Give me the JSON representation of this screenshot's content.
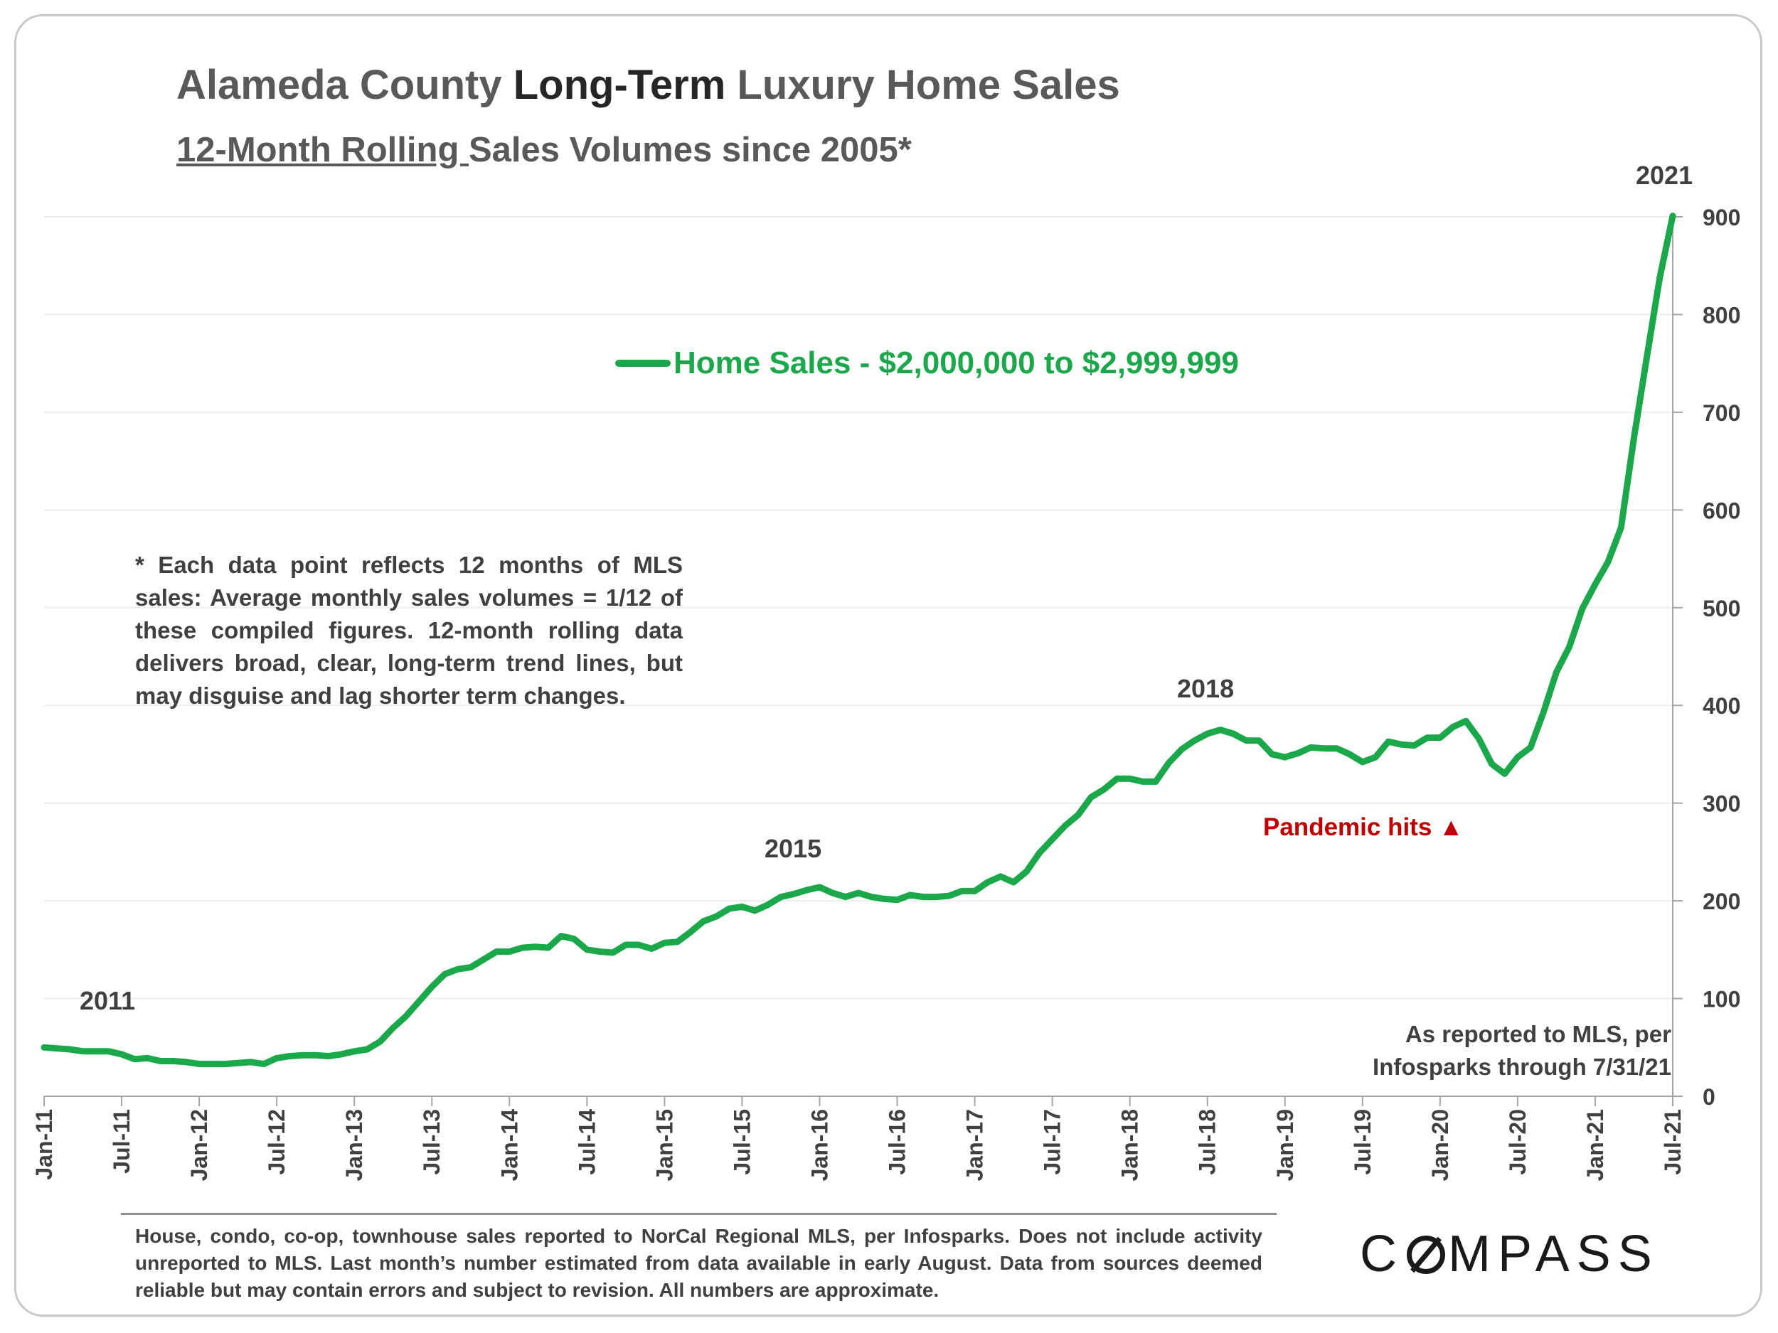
{
  "title": {
    "part1": "Alameda County ",
    "part2": "Long-Term",
    "part3": " Luxury Home Sales"
  },
  "subtitle": {
    "part1": "12-Month Rolling ",
    "part2": "Sales Volumes since 2005*"
  },
  "legend": {
    "label": "Home Sales - $2,000,000 to $2,999,999",
    "color": "#1aa84a"
  },
  "note": "* Each data point reflects 12 months of MLS sales:  Average monthly sales volumes = 1/12 of these compiled figures. 12-month rolling data delivers broad, clear, long-term trend lines, but may disguise and lag shorter term changes.",
  "source_note": "As reported to MLS, per Infosparks through 7/31/21",
  "annotation": {
    "text": "Pandemic hits",
    "symbol": "▲",
    "color": "#c00000"
  },
  "year_labels": {
    "y2011": "2011",
    "y2015": "2015",
    "y2018": "2018",
    "y2021": "2021"
  },
  "footer": "House, condo, co-op, townhouse sales reported to NorCal Regional MLS, per Infosparks. Does not include activity unreported to MLS. Last month’s number estimated from data available in early August. Data from sources deemed reliable but may contain errors and subject to revision.  All numbers are approximate.",
  "logo": {
    "pre": "C",
    "post": "MPASS"
  },
  "chart_data": {
    "type": "line",
    "title": "Alameda County Long-Term Luxury Home Sales",
    "subtitle": "12-Month Rolling Sales Volumes since 2005*",
    "x_ticks": [
      "Jan-11",
      "Jul-11",
      "Jan-12",
      "Jul-12",
      "Jan-13",
      "Jul-13",
      "Jan-14",
      "Jul-14",
      "Jan-15",
      "Jul-15",
      "Jan-16",
      "Jul-16",
      "Jan-17",
      "Jul-17",
      "Jan-18",
      "Jul-18",
      "Jan-19",
      "Jul-19",
      "Jan-20",
      "Jul-20",
      "Jan-21",
      "Jul-21"
    ],
    "y_ticks": [
      0,
      100,
      200,
      300,
      400,
      500,
      600,
      700,
      800,
      900
    ],
    "ylim": [
      0,
      900
    ],
    "y_axis_position": "right",
    "grid": true,
    "legend_position": "top-center",
    "series": [
      {
        "name": "Home Sales - $2,000,000 to $2,999,999",
        "color": "#1aa84a",
        "start": "Jan-11",
        "frequency": "monthly",
        "values": [
          50,
          49,
          48,
          46,
          46,
          46,
          43,
          38,
          39,
          36,
          36,
          35,
          33,
          33,
          33,
          34,
          35,
          33,
          39,
          41,
          42,
          42,
          41,
          43,
          46,
          48,
          56,
          70,
          82,
          97,
          112,
          125,
          130,
          132,
          140,
          148,
          148,
          152,
          153,
          152,
          164,
          161,
          150,
          148,
          147,
          155,
          155,
          151,
          157,
          158,
          168,
          179,
          184,
          192,
          194,
          190,
          196,
          204,
          207,
          211,
          214,
          208,
          204,
          208,
          204,
          202,
          201,
          206,
          204,
          204,
          205,
          210,
          210,
          219,
          225,
          219,
          230,
          249,
          263,
          277,
          288,
          306,
          314,
          325,
          325,
          322,
          322,
          341,
          355,
          364,
          371,
          375,
          371,
          364,
          364,
          350,
          347,
          351,
          357,
          356,
          356,
          350,
          342,
          347,
          363,
          360,
          359,
          367,
          367,
          378,
          384,
          366,
          340,
          330,
          347,
          357,
          393,
          434,
          460,
          499,
          524,
          547,
          582,
          674,
          757,
          838,
          901
        ]
      }
    ],
    "annotations": [
      {
        "label": "2011",
        "x": "Jan-11"
      },
      {
        "label": "2015",
        "x": "Jul-15"
      },
      {
        "label": "2018",
        "x": "Jul-18"
      },
      {
        "label": "2021",
        "x": "Jul-21"
      },
      {
        "label": "Pandemic hits ▲",
        "x": "Apr-20"
      }
    ]
  }
}
